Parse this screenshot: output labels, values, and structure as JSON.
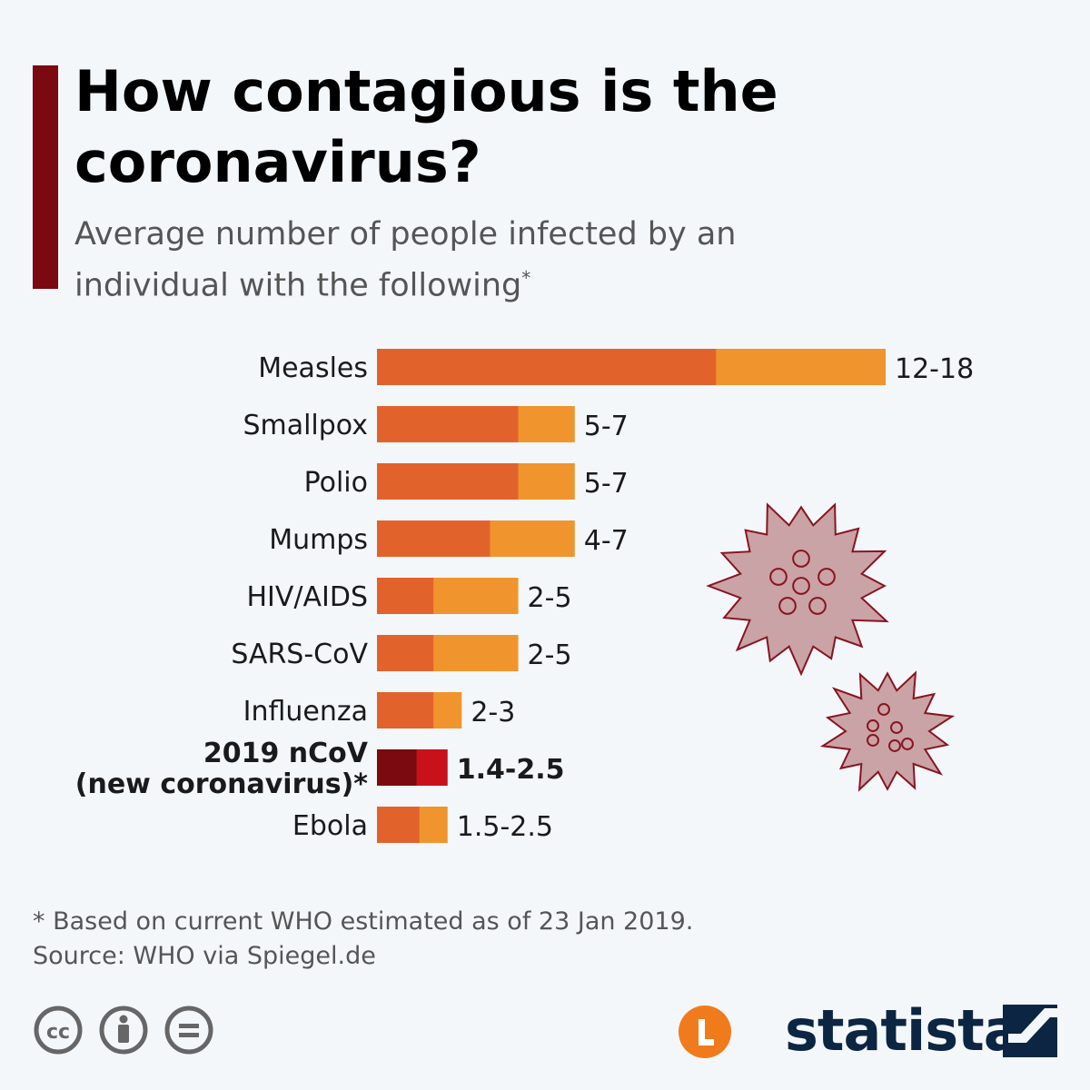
{
  "header": {
    "title": "How contagious is the coronavirus?",
    "subtitle": "Average number of people infected by an individual with the following",
    "subtitle_mark": "*"
  },
  "chart_data": {
    "type": "bar",
    "orientation": "horizontal",
    "stacked": true,
    "value_meaning": "range: solid segment = lower bound, lighter segment extends to upper bound",
    "categories": [
      "Measles",
      "Smallpox",
      "Polio",
      "Mumps",
      "HIV/AIDS",
      "SARS-CoV",
      "Influenza",
      "2019 nCoV (new coronavirus)*",
      "Ebola"
    ],
    "category_lines": [
      [
        "Measles"
      ],
      [
        "Smallpox"
      ],
      [
        "Polio"
      ],
      [
        "Mumps"
      ],
      [
        "HIV/AIDS"
      ],
      [
        "SARS-CoV"
      ],
      [
        "Influenza"
      ],
      [
        "2019 nCoV",
        "(new coronavirus)*"
      ],
      [
        "Ebola"
      ]
    ],
    "highlight_index": 7,
    "range_low": [
      12,
      5,
      5,
      4,
      2,
      2,
      2,
      1.4,
      1.5
    ],
    "range_high": [
      18,
      7,
      7,
      7,
      5,
      5,
      3,
      2.5,
      2.5
    ],
    "data_labels": [
      "12-18",
      "5-7",
      "5-7",
      "4-7",
      "2-5",
      "2-5",
      "2-3",
      "1.4-2.5",
      "1.5-2.5"
    ],
    "xlim": [
      0,
      18
    ],
    "grid": false,
    "legend": "none",
    "colors": {
      "low": "#e2622c",
      "high": "#f0942e",
      "highlight_low": "#7a0a10",
      "highlight_high": "#c8111a"
    }
  },
  "footer": {
    "note": "* Based on current WHO estimated as of 23 Jan 2019.",
    "source": "Source: WHO via Spiegel.de",
    "license_icons": [
      "cc-icon",
      "attribution-icon",
      "no-derivatives-icon"
    ],
    "logo_text": "statista"
  },
  "decor": {
    "virus_color": "#c9a3a6",
    "virus_outline": "#8a1320"
  }
}
